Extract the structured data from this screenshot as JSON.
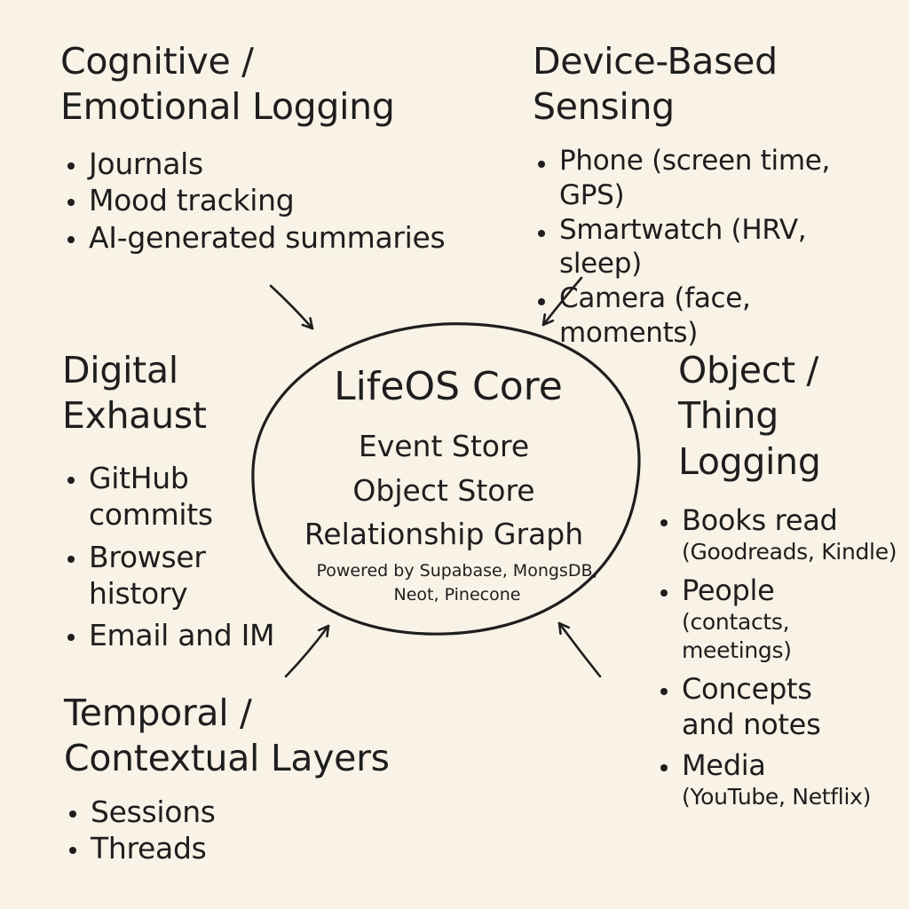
{
  "core": {
    "title": "LifeOS Core",
    "stores": [
      "Event Store",
      "Object Store",
      "Relationship Graph"
    ],
    "powered_by": "Powered by Supabase, MongsDB, Neot, Pinecone"
  },
  "cognitive": {
    "title": "Cognitive /\nEmotional Logging",
    "items": [
      "Journals",
      "Mood tracking",
      "AI-generated summaries"
    ]
  },
  "device": {
    "title": "Device-Based\nSensing",
    "items": [
      "Phone (screen time, GPS)",
      "Smartwatch (HRV, sleep)",
      "Camera (face, moments)"
    ]
  },
  "digital": {
    "title": "Digital\nExhaust",
    "items": [
      "GitHub commits",
      "Browser history",
      "Email and IM"
    ]
  },
  "object": {
    "title": "Object /\nThing\nLogging",
    "items": [
      {
        "label": "Books read",
        "sub": "(Goodreads, Kindle)"
      },
      {
        "label": "People",
        "sub": "(contacts, meetings)"
      },
      {
        "label": "Concepts and notes",
        "sub": ""
      },
      {
        "label": "Media",
        "sub": "(YouTube, Netflix)"
      }
    ]
  },
  "temporal": {
    "title": "Temporal /\nContextual Layers",
    "items": [
      "Sessions",
      "Threads"
    ]
  },
  "colors": {
    "background": "#f8f2e7",
    "ink": "#1e1e1e"
  }
}
